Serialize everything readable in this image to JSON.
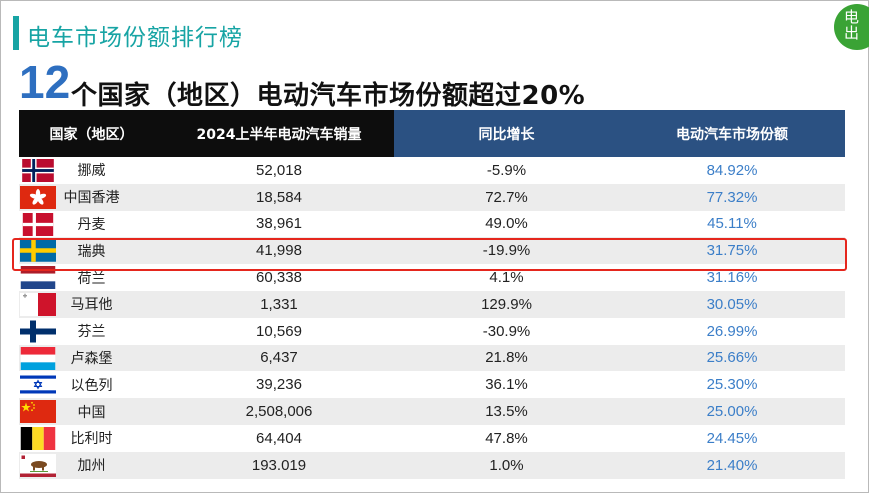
{
  "header": {
    "section_title": "电车市场份额排行榜",
    "logo_text": "电出"
  },
  "headline": {
    "count": "12",
    "text": "个国家（地区）电动汽车市场份额超过20%"
  },
  "table": {
    "columns": [
      "国家（地区）",
      "2024上半年电动汽车销量",
      "同比增长",
      "电动汽车市场份额"
    ],
    "rows": [
      {
        "flag": "norway-flag-icon",
        "region": "挪威",
        "sales": "52,018",
        "growth": "-5.9%",
        "share": "84.92%"
      },
      {
        "flag": "hong-kong-flag-icon",
        "region": "中国香港",
        "sales": "18,584",
        "growth": "72.7%",
        "share": "77.32%"
      },
      {
        "flag": "denmark-flag-icon",
        "region": "丹麦",
        "sales": "38,961",
        "growth": "49.0%",
        "share": "45.11%"
      },
      {
        "flag": "sweden-flag-icon",
        "region": "瑞典",
        "sales": "41,998",
        "growth": "-19.9%",
        "share": "31.75%"
      },
      {
        "flag": "netherlands-flag-icon",
        "region": "荷兰",
        "sales": "60,338",
        "growth": "4.1%",
        "share": "31.16%"
      },
      {
        "flag": "malta-flag-icon",
        "region": "马耳他",
        "sales": "1,331",
        "growth": "129.9%",
        "share": "30.05%"
      },
      {
        "flag": "finland-flag-icon",
        "region": "芬兰",
        "sales": "10,569",
        "growth": "-30.9%",
        "share": "26.99%"
      },
      {
        "flag": "luxembourg-flag-icon",
        "region": "卢森堡",
        "sales": "6,437",
        "growth": "21.8%",
        "share": "25.66%"
      },
      {
        "flag": "israel-flag-icon",
        "region": "以色列",
        "sales": "39,236",
        "growth": "36.1%",
        "share": "25.30%"
      },
      {
        "flag": "china-flag-icon",
        "region": "中国",
        "sales": "2,508,006",
        "growth": "13.5%",
        "share": "25.00%"
      },
      {
        "flag": "belgium-flag-icon",
        "region": "比利时",
        "sales": "64,404",
        "growth": "47.8%",
        "share": "24.45%"
      },
      {
        "flag": "california-flag-icon",
        "region": "加州",
        "sales": "193.019",
        "growth": "1.0%",
        "share": "21.40%"
      }
    ]
  },
  "colors": {
    "accent": "#17a4a4",
    "header_dark": "#0d0d0d",
    "header_blue": "#2b5182",
    "share_text": "#3b7ec8",
    "highlight": "#e5261d",
    "number_blue": "#2e6fc0"
  }
}
